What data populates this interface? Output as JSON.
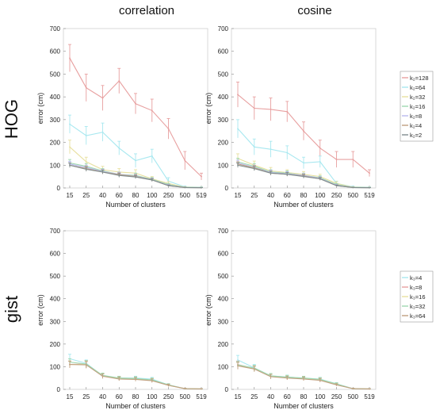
{
  "col_titles": [
    "correlation",
    "cosine"
  ],
  "row_titles": [
    "HOG",
    "gist"
  ],
  "legend_hog": [
    "k₂=128",
    "k₂=64",
    "k₂=32",
    "k₂=16",
    "k₂=8",
    "k₂=4",
    "k₂=2"
  ],
  "legend_gist": [
    "k₃=4",
    "k₃=8",
    "k₃=16",
    "k₃=32",
    "k₃=64"
  ],
  "chart_data": [
    {
      "type": "line",
      "title": "correlation",
      "row": "HOG",
      "xlabel": "Number of clusters",
      "ylabel": "error (cm)",
      "categories": [
        "15",
        "25",
        "40",
        "60",
        "80",
        "100",
        "250",
        "500",
        "519"
      ],
      "ylim": [
        0,
        700
      ],
      "yticks": [
        0,
        100,
        200,
        300,
        400,
        500,
        600,
        700
      ],
      "series": [
        {
          "name": "k₂=128",
          "color": "#e8a0a0",
          "values": [
            570,
            440,
            395,
            470,
            370,
            340,
            260,
            120,
            50
          ],
          "errors": [
            60,
            60,
            55,
            55,
            45,
            50,
            45,
            40,
            15
          ]
        },
        {
          "name": "k₂=64",
          "color": "#a8e8f0",
          "values": [
            280,
            230,
            245,
            175,
            120,
            140,
            30,
            5,
            3
          ],
          "errors": [
            40,
            40,
            40,
            30,
            30,
            30,
            15,
            3,
            2
          ]
        },
        {
          "name": "k₂=32",
          "color": "#e8e0a0",
          "values": [
            180,
            115,
            80,
            70,
            65,
            40,
            20,
            3,
            2
          ],
          "errors": [
            30,
            20,
            15,
            15,
            15,
            10,
            8,
            2,
            1
          ]
        },
        {
          "name": "k₂=16",
          "color": "#9fd8b0",
          "values": [
            110,
            95,
            75,
            60,
            55,
            38,
            15,
            2,
            1
          ],
          "errors": [
            15,
            12,
            10,
            10,
            10,
            8,
            5,
            1,
            1
          ]
        },
        {
          "name": "k₂=8",
          "color": "#b8b8ee",
          "values": [
            105,
            90,
            72,
            60,
            52,
            36,
            12,
            2,
            1
          ],
          "errors": [
            12,
            10,
            10,
            9,
            8,
            7,
            4,
            1,
            1
          ]
        },
        {
          "name": "k₂=4",
          "color": "#c0a080",
          "values": [
            100,
            85,
            70,
            58,
            50,
            35,
            10,
            2,
            1
          ],
          "errors": [
            10,
            10,
            9,
            8,
            8,
            6,
            3,
            1,
            1
          ]
        },
        {
          "name": "k₂=2",
          "color": "#7f8c8d",
          "values": [
            100,
            82,
            70,
            55,
            48,
            35,
            10,
            2,
            1
          ],
          "errors": [
            10,
            9,
            8,
            8,
            7,
            6,
            3,
            1,
            1
          ]
        }
      ]
    },
    {
      "type": "line",
      "title": "cosine",
      "row": "HOG",
      "xlabel": "Number of clusters",
      "ylabel": "error (cm)",
      "categories": [
        "15",
        "25",
        "40",
        "60",
        "80",
        "100",
        "250",
        "500",
        "519"
      ],
      "ylim": [
        0,
        700
      ],
      "yticks": [
        0,
        100,
        200,
        300,
        400,
        500,
        600,
        700
      ],
      "series": [
        {
          "name": "k₂=128",
          "color": "#e8a0a0",
          "values": [
            410,
            350,
            345,
            335,
            250,
            175,
            125,
            125,
            65
          ],
          "errors": [
            55,
            50,
            50,
            45,
            40,
            35,
            35,
            35,
            15
          ]
        },
        {
          "name": "k₂=64",
          "color": "#a8e8f0",
          "values": [
            260,
            180,
            170,
            155,
            110,
            115,
            20,
            5,
            3
          ],
          "errors": [
            40,
            35,
            35,
            30,
            25,
            25,
            10,
            3,
            2
          ]
        },
        {
          "name": "k₂=32",
          "color": "#e8e0a0",
          "values": [
            130,
            100,
            75,
            68,
            60,
            50,
            20,
            3,
            2
          ],
          "errors": [
            20,
            18,
            15,
            12,
            12,
            10,
            8,
            2,
            1
          ]
        },
        {
          "name": "k₂=16",
          "color": "#9fd8b0",
          "values": [
            115,
            95,
            70,
            65,
            55,
            45,
            15,
            2,
            1
          ],
          "errors": [
            15,
            12,
            10,
            10,
            10,
            8,
            5,
            1,
            1
          ]
        },
        {
          "name": "k₂=8",
          "color": "#b8b8ee",
          "values": [
            110,
            90,
            68,
            62,
            55,
            42,
            12,
            2,
            1
          ],
          "errors": [
            12,
            10,
            10,
            9,
            8,
            7,
            4,
            1,
            1
          ]
        },
        {
          "name": "k₂=4",
          "color": "#c0a080",
          "values": [
            105,
            88,
            65,
            60,
            52,
            40,
            10,
            2,
            1
          ],
          "errors": [
            10,
            10,
            9,
            8,
            8,
            6,
            3,
            1,
            1
          ]
        },
        {
          "name": "k₂=2",
          "color": "#7f8c8d",
          "values": [
            100,
            85,
            65,
            60,
            50,
            40,
            10,
            2,
            1
          ],
          "errors": [
            10,
            9,
            8,
            8,
            7,
            6,
            3,
            1,
            1
          ]
        }
      ]
    },
    {
      "type": "line",
      "title": "",
      "row": "gist",
      "xlabel": "Number of clusters",
      "ylabel": "error (cm)",
      "categories": [
        "15",
        "25",
        "40",
        "60",
        "80",
        "100",
        "250",
        "500",
        "519"
      ],
      "ylim": [
        0,
        700
      ],
      "yticks": [
        0,
        100,
        200,
        300,
        400,
        500,
        600,
        700
      ],
      "series": [
        {
          "name": "k₃=4",
          "color": "#a8e8f0",
          "values": [
            135,
            115,
            60,
            50,
            50,
            45,
            20,
            3,
            2
          ],
          "errors": [
            20,
            15,
            10,
            8,
            8,
            8,
            5,
            2,
            1
          ]
        },
        {
          "name": "k₃=8",
          "color": "#e8a0a0",
          "values": [
            110,
            112,
            58,
            48,
            45,
            40,
            18,
            3,
            2
          ],
          "errors": [
            15,
            15,
            10,
            8,
            8,
            8,
            5,
            2,
            1
          ]
        },
        {
          "name": "k₃=16",
          "color": "#e8e0a0",
          "values": [
            110,
            110,
            60,
            48,
            45,
            40,
            18,
            3,
            2
          ],
          "errors": [
            15,
            15,
            10,
            8,
            8,
            8,
            5,
            2,
            1
          ]
        },
        {
          "name": "k₃=32",
          "color": "#9fd8b0",
          "values": [
            120,
            112,
            62,
            50,
            48,
            42,
            20,
            3,
            2
          ],
          "errors": [
            15,
            15,
            10,
            8,
            8,
            8,
            5,
            2,
            1
          ]
        },
        {
          "name": "k₃=64",
          "color": "#c0a080",
          "values": [
            110,
            108,
            58,
            46,
            44,
            38,
            18,
            3,
            2
          ],
          "errors": [
            15,
            15,
            10,
            8,
            8,
            8,
            5,
            2,
            1
          ]
        }
      ]
    },
    {
      "type": "line",
      "title": "",
      "row": "gist",
      "xlabel": "Number of clusters",
      "ylabel": "error (cm)",
      "categories": [
        "15",
        "25",
        "40",
        "60",
        "80",
        "100",
        "250",
        "500",
        "519"
      ],
      "ylim": [
        0,
        700
      ],
      "yticks": [
        0,
        100,
        200,
        300,
        400,
        500,
        600,
        700
      ],
      "series": [
        {
          "name": "k₃=4",
          "color": "#a8e8f0",
          "values": [
            130,
            95,
            60,
            55,
            50,
            45,
            25,
            3,
            2
          ],
          "errors": [
            20,
            15,
            10,
            8,
            8,
            8,
            5,
            2,
            1
          ]
        },
        {
          "name": "k₃=8",
          "color": "#e8a0a0",
          "values": [
            110,
            92,
            58,
            52,
            48,
            42,
            22,
            3,
            2
          ],
          "errors": [
            15,
            12,
            10,
            8,
            8,
            8,
            5,
            2,
            1
          ]
        },
        {
          "name": "k₃=16",
          "color": "#e8e0a0",
          "values": [
            105,
            92,
            58,
            52,
            48,
            42,
            22,
            3,
            2
          ],
          "errors": [
            15,
            12,
            10,
            8,
            8,
            8,
            5,
            2,
            1
          ]
        },
        {
          "name": "k₃=32",
          "color": "#9fd8b0",
          "values": [
            108,
            94,
            60,
            54,
            50,
            44,
            24,
            3,
            2
          ],
          "errors": [
            15,
            12,
            10,
            8,
            8,
            8,
            5,
            2,
            1
          ]
        },
        {
          "name": "k₃=64",
          "color": "#c0a080",
          "values": [
            104,
            90,
            56,
            50,
            46,
            40,
            20,
            3,
            2
          ],
          "errors": [
            15,
            12,
            10,
            8,
            8,
            8,
            5,
            2,
            1
          ]
        }
      ]
    }
  ]
}
